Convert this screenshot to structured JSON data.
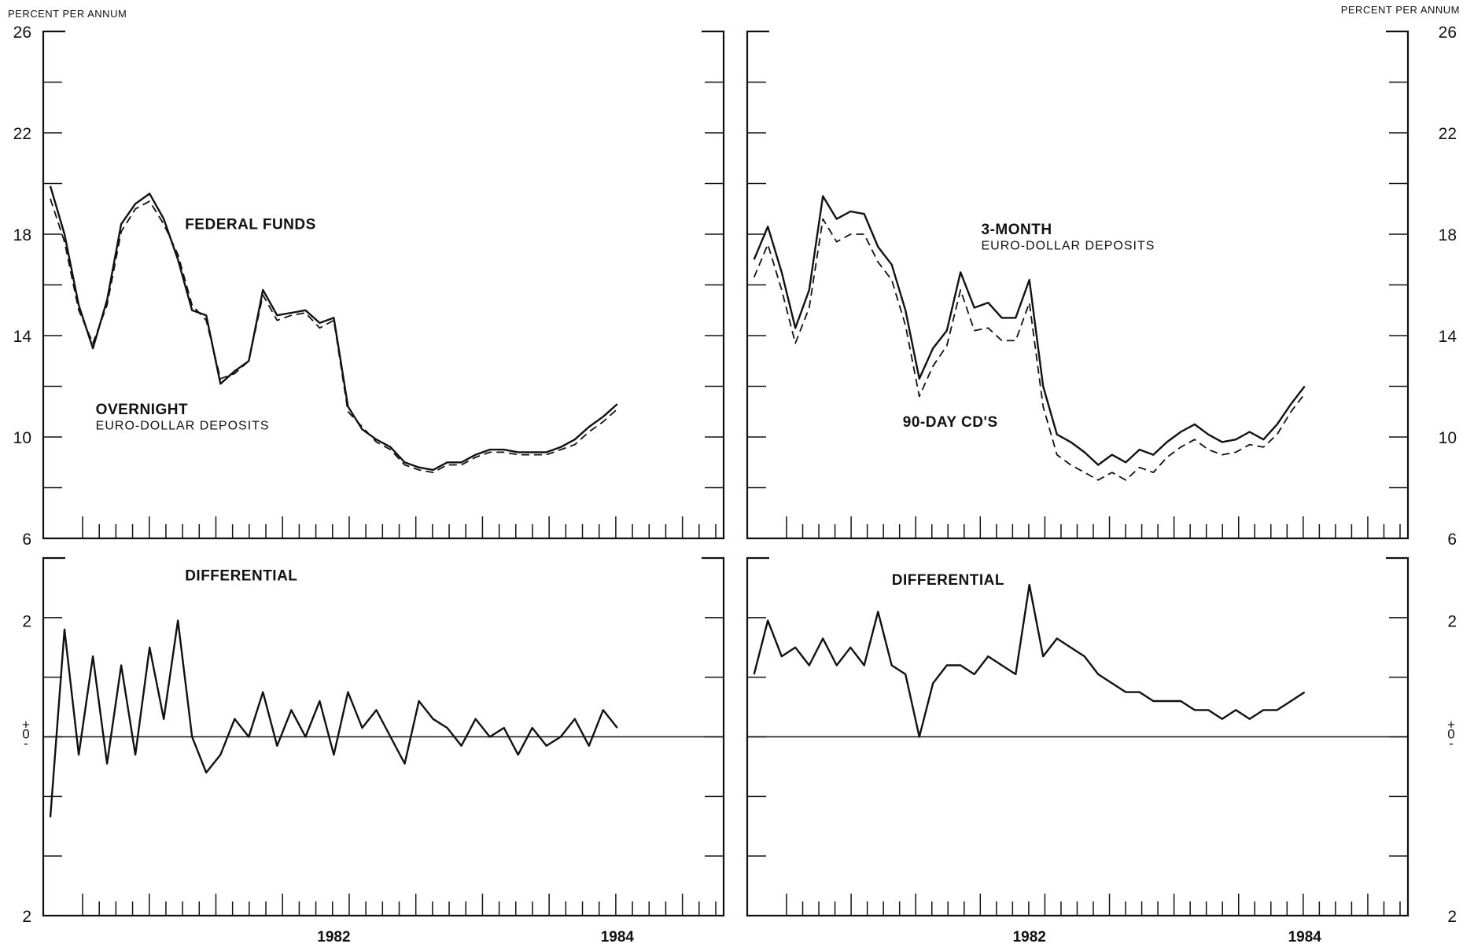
{
  "unit_label_left": "PERCENT PER ANNUM",
  "unit_label_right": "PERCENT PER ANNUM",
  "chart_data": [
    {
      "type": "line",
      "ylim": [
        6,
        26
      ],
      "y_ticks": [
        26,
        22,
        18,
        14,
        10,
        6
      ],
      "x_tick_labels": [
        "1982",
        "1984"
      ],
      "x": [
        1980.0,
        1980.1,
        1980.2,
        1980.3,
        1980.4,
        1980.5,
        1980.6,
        1980.7,
        1980.8,
        1980.9,
        1981.0,
        1981.1,
        1981.2,
        1981.3,
        1981.4,
        1981.5,
        1981.6,
        1981.7,
        1981.8,
        1981.9,
        1982.0,
        1982.1,
        1982.2,
        1982.3,
        1982.4,
        1982.5,
        1982.6,
        1982.7,
        1982.8,
        1982.9,
        1983.0,
        1983.1,
        1983.2,
        1983.3,
        1983.4,
        1983.5,
        1983.6,
        1983.7,
        1983.8,
        1983.9,
        1984.0
      ],
      "annotations": [
        {
          "text": "FEDERAL FUNDS",
          "x": 1980.95,
          "y": 18.2
        },
        {
          "text": "OVERNIGHT",
          "x": 1980.32,
          "y": 10.9
        },
        {
          "text": "EURO-DOLLAR DEPOSITS",
          "x": 1980.32,
          "y": 10.3
        }
      ],
      "series": [
        {
          "style": "solid",
          "values": [
            19.9,
            18.0,
            15.2,
            13.5,
            15.4,
            18.4,
            19.2,
            19.6,
            18.6,
            17.0,
            15.0,
            14.8,
            12.1,
            12.6,
            13.0,
            15.8,
            14.8,
            14.9,
            15.0,
            14.5,
            14.7,
            11.2,
            10.3,
            9.9,
            9.6,
            9.0,
            8.8,
            8.7,
            9.0,
            9.0,
            9.3,
            9.5,
            9.5,
            9.4,
            9.4,
            9.4,
            9.6,
            9.9,
            10.4,
            10.8,
            11.3
          ]
        },
        {
          "style": "dashed",
          "values": [
            19.4,
            17.7,
            15.0,
            13.7,
            15.2,
            18.1,
            19.0,
            19.3,
            18.4,
            17.2,
            15.2,
            14.6,
            12.3,
            12.5,
            13.0,
            15.6,
            14.6,
            14.8,
            14.9,
            14.3,
            14.6,
            11.0,
            10.4,
            9.8,
            9.5,
            8.9,
            8.7,
            8.6,
            8.9,
            8.9,
            9.2,
            9.4,
            9.4,
            9.3,
            9.3,
            9.3,
            9.5,
            9.7,
            10.2,
            10.6,
            11.1
          ]
        }
      ]
    },
    {
      "type": "line",
      "ylim": [
        -2,
        2
      ],
      "y_ticks": [
        2,
        0,
        2
      ],
      "zero_sign_labels": [
        "+",
        "0",
        "-"
      ],
      "x_tick_labels": [
        "1982",
        "1984"
      ],
      "annotations": [
        {
          "text": "DIFFERENTIAL",
          "x": 1980.95,
          "y": 1.75
        }
      ],
      "x": [
        1980.0,
        1980.1,
        1980.2,
        1980.3,
        1980.4,
        1980.5,
        1980.6,
        1980.7,
        1980.8,
        1980.9,
        1981.0,
        1981.1,
        1981.2,
        1981.3,
        1981.4,
        1981.5,
        1981.6,
        1981.7,
        1981.8,
        1981.9,
        1982.0,
        1982.1,
        1982.2,
        1982.3,
        1982.4,
        1982.5,
        1982.6,
        1982.7,
        1982.8,
        1982.9,
        1983.0,
        1983.1,
        1983.2,
        1983.3,
        1983.4,
        1983.5,
        1983.6,
        1983.7,
        1983.8,
        1983.9,
        1984.0
      ],
      "series": [
        {
          "style": "solid",
          "values": [
            -0.9,
            1.2,
            -0.2,
            0.9,
            -0.3,
            0.8,
            -0.2,
            1.0,
            0.2,
            1.3,
            0.0,
            -0.4,
            -0.2,
            0.2,
            0.0,
            0.5,
            -0.1,
            0.3,
            0.0,
            0.4,
            -0.2,
            0.5,
            0.1,
            0.3,
            0.0,
            -0.3,
            0.4,
            0.2,
            0.1,
            -0.1,
            0.2,
            0.0,
            0.1,
            -0.2,
            0.1,
            -0.1,
            0.0,
            0.2,
            -0.1,
            0.3,
            0.1
          ]
        }
      ]
    },
    {
      "type": "line",
      "ylim": [
        6,
        26
      ],
      "y_ticks": [
        26,
        22,
        18,
        14,
        10,
        6
      ],
      "x_tick_labels": [
        "1982",
        "1984"
      ],
      "annotations": [
        {
          "text": "3-MONTH",
          "x": 1981.65,
          "y": 18.0
        },
        {
          "text": "EURO-DOLLAR DEPOSITS",
          "x": 1981.65,
          "y": 17.4
        },
        {
          "text": "90-DAY CD'S",
          "x": 1981.08,
          "y": 10.4
        }
      ],
      "x": [
        1980.0,
        1980.1,
        1980.2,
        1980.3,
        1980.4,
        1980.5,
        1980.6,
        1980.7,
        1980.8,
        1980.9,
        1981.0,
        1981.1,
        1981.2,
        1981.3,
        1981.4,
        1981.5,
        1981.6,
        1981.7,
        1981.8,
        1981.9,
        1982.0,
        1982.1,
        1982.2,
        1982.3,
        1982.4,
        1982.5,
        1982.6,
        1982.7,
        1982.8,
        1982.9,
        1983.0,
        1983.1,
        1983.2,
        1983.3,
        1983.4,
        1983.5,
        1983.6,
        1983.7,
        1983.8,
        1983.9,
        1984.0
      ],
      "series": [
        {
          "style": "solid",
          "values": [
            17.0,
            18.3,
            16.5,
            14.3,
            15.8,
            19.5,
            18.6,
            18.9,
            18.8,
            17.5,
            16.8,
            15.0,
            12.3,
            13.5,
            14.2,
            16.5,
            15.1,
            15.3,
            14.7,
            14.7,
            16.2,
            12.0,
            10.1,
            9.8,
            9.4,
            8.9,
            9.3,
            9.0,
            9.5,
            9.3,
            9.8,
            10.2,
            10.5,
            10.1,
            9.8,
            9.9,
            10.2,
            9.9,
            10.5,
            11.3,
            12.0
          ]
        },
        {
          "style": "dashed",
          "values": [
            16.3,
            17.6,
            15.8,
            13.7,
            15.1,
            18.6,
            17.7,
            18.0,
            18.0,
            16.9,
            16.2,
            14.4,
            11.6,
            12.8,
            13.6,
            15.8,
            14.2,
            14.3,
            13.8,
            13.8,
            15.3,
            11.2,
            9.3,
            8.9,
            8.6,
            8.3,
            8.6,
            8.3,
            8.8,
            8.6,
            9.2,
            9.6,
            9.9,
            9.5,
            9.3,
            9.4,
            9.7,
            9.6,
            10.1,
            11.0,
            11.7
          ]
        }
      ]
    },
    {
      "type": "line",
      "ylim": [
        -2,
        2
      ],
      "y_ticks": [
        2,
        0,
        2
      ],
      "zero_sign_labels": [
        "+",
        "0",
        "-"
      ],
      "x_tick_labels": [
        "1982",
        "1984"
      ],
      "annotations": [
        {
          "text": "DIFFERENTIAL",
          "x": 1981.0,
          "y": 1.7
        }
      ],
      "x": [
        1980.0,
        1980.1,
        1980.2,
        1980.3,
        1980.4,
        1980.5,
        1980.6,
        1980.7,
        1980.8,
        1980.9,
        1981.0,
        1981.1,
        1981.2,
        1981.3,
        1981.4,
        1981.5,
        1981.6,
        1981.7,
        1981.8,
        1981.9,
        1982.0,
        1982.1,
        1982.2,
        1982.3,
        1982.4,
        1982.5,
        1982.6,
        1982.7,
        1982.8,
        1982.9,
        1983.0,
        1983.1,
        1983.2,
        1983.3,
        1983.4,
        1983.5,
        1983.6,
        1983.7,
        1983.8,
        1983.9,
        1984.0
      ],
      "series": [
        {
          "style": "solid",
          "values": [
            0.7,
            1.3,
            0.9,
            1.0,
            0.8,
            1.1,
            0.8,
            1.0,
            0.8,
            1.4,
            0.8,
            0.7,
            0.0,
            0.6,
            0.8,
            0.8,
            0.7,
            0.9,
            0.8,
            0.7,
            1.7,
            0.9,
            1.1,
            1.0,
            0.9,
            0.7,
            0.6,
            0.5,
            0.5,
            0.4,
            0.4,
            0.4,
            0.3,
            0.3,
            0.2,
            0.3,
            0.2,
            0.3,
            0.3,
            0.4,
            0.5
          ]
        }
      ]
    }
  ]
}
